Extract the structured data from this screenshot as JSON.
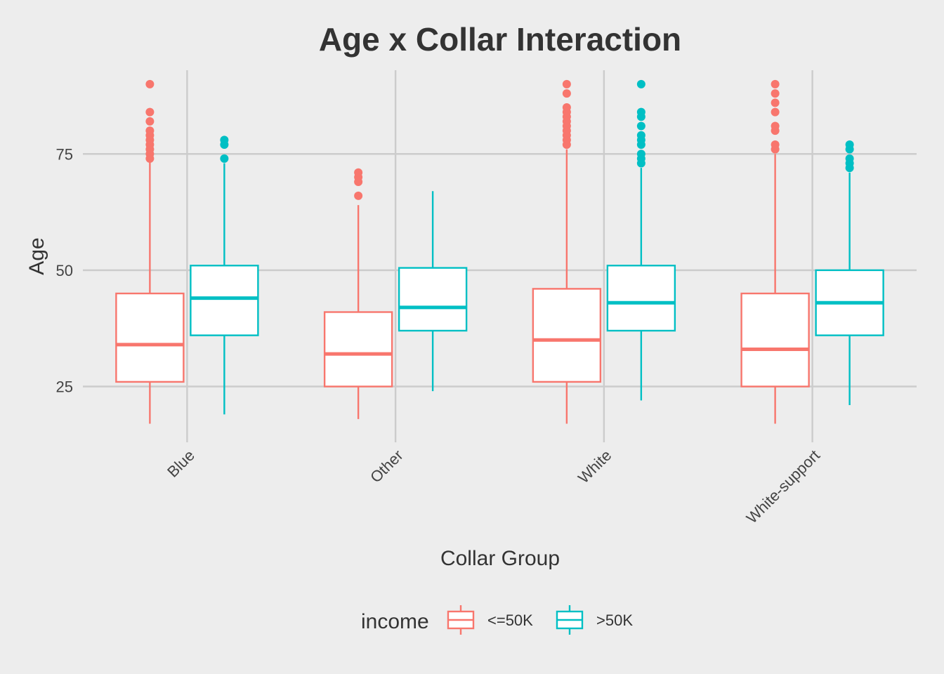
{
  "chart_data": {
    "type": "box",
    "title": "Age x Collar Interaction",
    "xlabel": "Collar Group",
    "ylabel": "Age",
    "ylim": [
      13,
      93
    ],
    "yticks": [
      25,
      50,
      75
    ],
    "categories": [
      "Blue",
      "Other",
      "White",
      "White-support"
    ],
    "legend": {
      "title": "income",
      "position": "bottom"
    },
    "grid": true,
    "series": [
      {
        "name": "<=50K",
        "color": "#F8766D",
        "boxes": [
          {
            "min": 17,
            "q1": 26,
            "median": 34,
            "q3": 45,
            "max": 74,
            "outliers": [
              74,
              75,
              76,
              77,
              78,
              79,
              80,
              82,
              84,
              90
            ]
          },
          {
            "min": 18,
            "q1": 25,
            "median": 32,
            "q3": 41,
            "max": 64,
            "outliers": [
              66,
              69,
              70,
              71
            ]
          },
          {
            "min": 17,
            "q1": 26,
            "median": 35,
            "q3": 46,
            "max": 76,
            "outliers": [
              77,
              78,
              79,
              80,
              81,
              82,
              83,
              84,
              85,
              88,
              90
            ]
          },
          {
            "min": 17,
            "q1": 25,
            "median": 33,
            "q3": 45,
            "max": 75,
            "outliers": [
              76,
              77,
              80,
              81,
              84,
              86,
              88,
              90
            ]
          }
        ]
      },
      {
        "name": ">50K",
        "color": "#00BFC4",
        "boxes": [
          {
            "min": 19,
            "q1": 36,
            "median": 44,
            "q3": 51,
            "max": 73,
            "outliers": [
              74,
              77,
              78
            ]
          },
          {
            "min": 24,
            "q1": 37,
            "median": 42,
            "q3": 50.5,
            "max": 67,
            "outliers": []
          },
          {
            "min": 22,
            "q1": 37,
            "median": 43,
            "q3": 51,
            "max": 72,
            "outliers": [
              73,
              74,
              75,
              77,
              78,
              79,
              81,
              83,
              84,
              90
            ]
          },
          {
            "min": 21,
            "q1": 36,
            "median": 43,
            "q3": 50,
            "max": 71,
            "outliers": [
              72,
              73,
              74,
              76,
              77
            ]
          }
        ]
      }
    ]
  }
}
